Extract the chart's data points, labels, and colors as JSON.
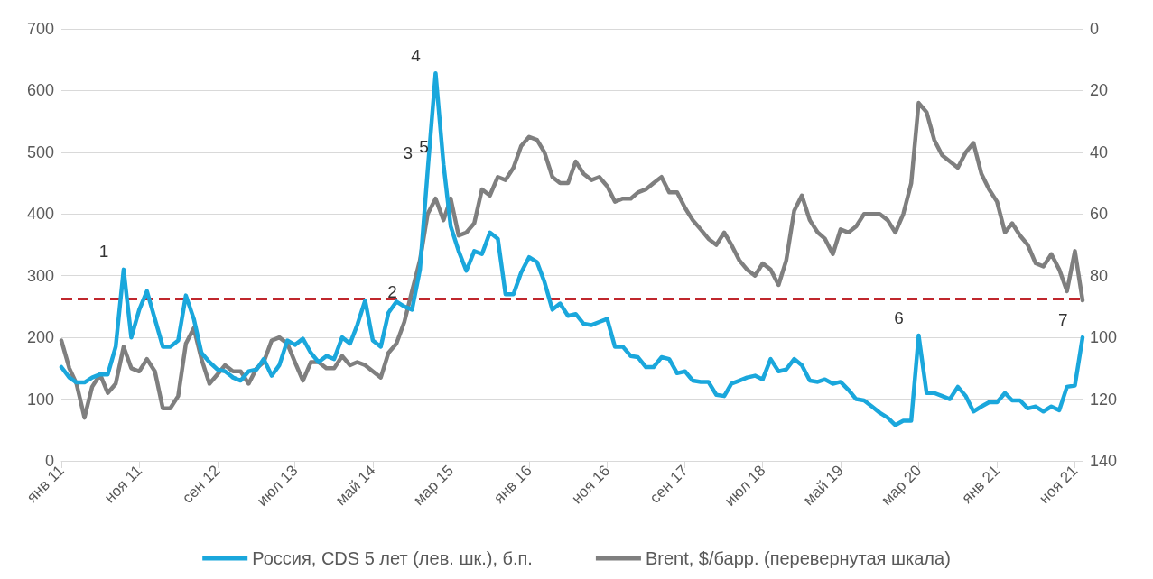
{
  "chart_data": {
    "type": "line",
    "x": [
      "2011-01",
      "2011-02",
      "2011-03",
      "2011-04",
      "2011-05",
      "2011-06",
      "2011-07",
      "2011-08",
      "2011-09",
      "2011-10",
      "2011-11",
      "2011-12",
      "2012-01",
      "2012-02",
      "2012-03",
      "2012-04",
      "2012-05",
      "2012-06",
      "2012-07",
      "2012-08",
      "2012-09",
      "2012-10",
      "2012-11",
      "2012-12",
      "2013-01",
      "2013-02",
      "2013-03",
      "2013-04",
      "2013-05",
      "2013-06",
      "2013-07",
      "2013-08",
      "2013-09",
      "2013-10",
      "2013-11",
      "2013-12",
      "2014-01",
      "2014-02",
      "2014-03",
      "2014-04",
      "2014-05",
      "2014-06",
      "2014-07",
      "2014-08",
      "2014-09",
      "2014-10",
      "2014-11",
      "2014-12",
      "2015-01",
      "2015-02",
      "2015-03",
      "2015-04",
      "2015-05",
      "2015-06",
      "2015-07",
      "2015-08",
      "2015-09",
      "2015-10",
      "2015-11",
      "2015-12",
      "2016-01",
      "2016-02",
      "2016-03",
      "2016-04",
      "2016-05",
      "2016-06",
      "2016-07",
      "2016-08",
      "2016-09",
      "2016-10",
      "2016-11",
      "2016-12",
      "2017-01",
      "2017-02",
      "2017-03",
      "2017-04",
      "2017-05",
      "2017-06",
      "2017-07",
      "2017-08",
      "2017-09",
      "2017-10",
      "2017-11",
      "2017-12",
      "2018-01",
      "2018-02",
      "2018-03",
      "2018-04",
      "2018-05",
      "2018-06",
      "2018-07",
      "2018-08",
      "2018-09",
      "2018-10",
      "2018-11",
      "2018-12",
      "2019-01",
      "2019-02",
      "2019-03",
      "2019-04",
      "2019-05",
      "2019-06",
      "2019-07",
      "2019-08",
      "2019-09",
      "2019-10",
      "2019-11",
      "2019-12",
      "2020-01",
      "2020-02",
      "2020-03",
      "2020-04",
      "2020-05",
      "2020-06",
      "2020-07",
      "2020-08",
      "2020-09",
      "2020-10",
      "2020-11",
      "2020-12",
      "2021-01",
      "2021-02",
      "2021-03",
      "2021-04",
      "2021-05",
      "2021-06",
      "2021-07",
      "2021-08",
      "2021-09",
      "2021-10",
      "2021-11",
      "2021-12"
    ],
    "xlim": [
      "2011-01",
      "2021-12"
    ],
    "xticks": [
      {
        "value": "2011-01",
        "label": "янв 11"
      },
      {
        "value": "2011-11",
        "label": "ноя 11"
      },
      {
        "value": "2012-09",
        "label": "сен 12"
      },
      {
        "value": "2013-07",
        "label": "июл 13"
      },
      {
        "value": "2014-05",
        "label": "май 14"
      },
      {
        "value": "2015-03",
        "label": "мар 15"
      },
      {
        "value": "2016-01",
        "label": "янв 16"
      },
      {
        "value": "2016-11",
        "label": "ноя 16"
      },
      {
        "value": "2017-09",
        "label": "сен 17"
      },
      {
        "value": "2018-07",
        "label": "июл 18"
      },
      {
        "value": "2019-05",
        "label": "май 19"
      },
      {
        "value": "2020-03",
        "label": "мар 20"
      },
      {
        "value": "2021-01",
        "label": "янв 21"
      },
      {
        "value": "2021-11",
        "label": "ноя 21"
      }
    ],
    "ylim": [
      0,
      700
    ],
    "yticks": [
      0,
      100,
      200,
      300,
      400,
      500,
      600,
      700
    ],
    "y2lim": [
      140,
      0
    ],
    "y2ticks": [
      0,
      20,
      40,
      60,
      80,
      100,
      120,
      140
    ],
    "grid": "y",
    "legend": "bottom",
    "marker": "none",
    "line_style": "solid",
    "series": [
      {
        "name": "Россия, CDS 5 лет (лев. шк.), б.п.",
        "color": "#1aa7dc",
        "values": [
          152,
          135,
          127,
          127,
          135,
          140,
          140,
          185,
          310,
          200,
          245,
          275,
          230,
          185,
          185,
          195,
          268,
          230,
          175,
          160,
          148,
          145,
          135,
          130,
          145,
          148,
          165,
          138,
          155,
          195,
          188,
          198,
          175,
          160,
          170,
          165,
          200,
          190,
          220,
          260,
          195,
          185,
          240,
          258,
          250,
          245,
          310,
          470,
          628,
          480,
          380,
          340,
          308,
          340,
          335,
          370,
          360,
          270,
          270,
          305,
          330,
          322,
          290,
          245,
          255,
          235,
          238,
          222,
          220,
          225,
          230,
          185,
          185,
          170,
          168,
          152,
          152,
          168,
          165,
          142,
          145,
          130,
          128,
          128,
          107,
          105,
          125,
          130,
          135,
          138,
          132,
          165,
          145,
          148,
          165,
          155,
          130,
          128,
          132,
          125,
          128,
          115,
          100,
          98,
          88,
          78,
          70,
          58,
          65,
          65,
          203,
          110,
          110,
          105,
          100,
          120,
          105,
          80,
          88,
          95,
          95,
          110,
          98,
          98,
          85,
          88,
          80,
          88,
          82,
          120,
          122,
          200
        ]
      },
      {
        "name": "Brent, $/барр. (перевернутая шкала)",
        "color": "#7f7f7f",
        "axis": "y2",
        "values": [
          101,
          110,
          115,
          126,
          116,
          112,
          118,
          115,
          103,
          110,
          111,
          107,
          111,
          123,
          123,
          119,
          102,
          97,
          107,
          115,
          112,
          109,
          111,
          111,
          115,
          110,
          108,
          101,
          100,
          102,
          108,
          114,
          108,
          108,
          110,
          110,
          106,
          109,
          108,
          109,
          111,
          113,
          105,
          102,
          95,
          85,
          75,
          60,
          55,
          62,
          55,
          67,
          66,
          63,
          52,
          54,
          48,
          49,
          45,
          38,
          35,
          36,
          40,
          48,
          50,
          50,
          43,
          47,
          49,
          48,
          51,
          56,
          55,
          55,
          53,
          52,
          50,
          48,
          53,
          53,
          58,
          62,
          65,
          68,
          70,
          66,
          70,
          75,
          78,
          80,
          76,
          78,
          83,
          75,
          59,
          54,
          62,
          66,
          68,
          73,
          65,
          66,
          64,
          60,
          60,
          60,
          62,
          66,
          60,
          50,
          24,
          27,
          36,
          41,
          43,
          45,
          40,
          37,
          47,
          52,
          56,
          66,
          63,
          67,
          70,
          76,
          77,
          73,
          78,
          85,
          72,
          88
        ]
      }
    ],
    "ref_lines": [
      {
        "axis": "y",
        "value": 263,
        "color": "#c0272d",
        "line_style": "dashed"
      }
    ],
    "annotations": [
      {
        "text": "1",
        "x": "2011-09",
        "y": 310
      },
      {
        "text": "2",
        "x": "2014-10",
        "y": 245
      },
      {
        "text": "3",
        "x": "2014-12",
        "y": 470
      },
      {
        "text": "4",
        "x": "2015-01",
        "y": 628
      },
      {
        "text": "5",
        "x": "2015-02",
        "y": 480
      },
      {
        "text": "6",
        "x": "2020-03",
        "y": 203
      },
      {
        "text": "7",
        "x": "2021-12",
        "y": 200
      }
    ]
  }
}
